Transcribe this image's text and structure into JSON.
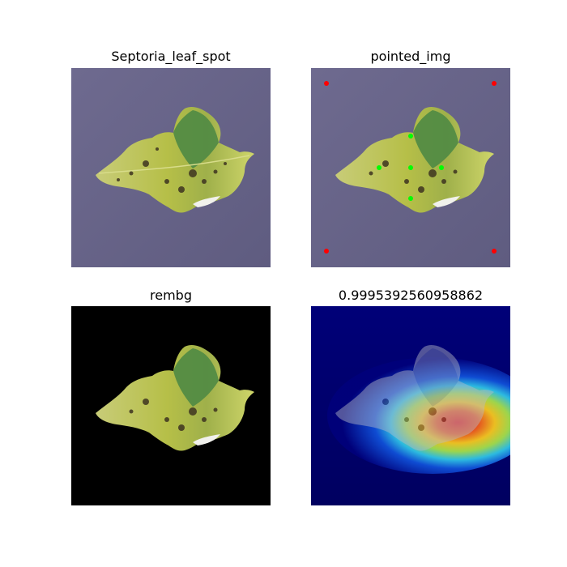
{
  "figure": {
    "panels": [
      {
        "title": "Septoria_leaf_spot",
        "image": "leaf-photo"
      },
      {
        "title": "pointed_img",
        "image": "leaf-photo-with-prompt-points",
        "point_colors": {
          "corner": "#ff0000",
          "leaf": "#00ff00"
        }
      },
      {
        "title": "rembg",
        "image": "leaf-cutout-on-black"
      },
      {
        "title": "0.9995392560958862",
        "image": "leaf-heatmap-overlay"
      }
    ]
  }
}
